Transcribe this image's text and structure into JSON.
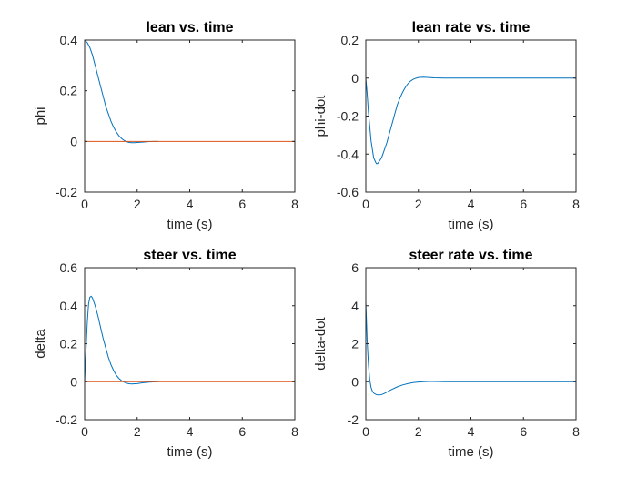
{
  "chart_data": [
    {
      "type": "line",
      "title": "lean vs. time",
      "xlabel": "time (s)",
      "ylabel": "phi",
      "xlim": [
        0,
        8
      ],
      "ylim": [
        -0.2,
        0.4
      ],
      "xticks": [
        "0",
        "2",
        "4",
        "6",
        "8"
      ],
      "yticks": [
        "-0.2",
        "0",
        "0.2",
        "0.4"
      ],
      "grid": false,
      "series": [
        {
          "color": "#0072BD",
          "x": [
            0,
            0.1,
            0.2,
            0.3,
            0.4,
            0.5,
            0.6,
            0.7,
            0.8,
            0.9,
            1.0,
            1.1,
            1.2,
            1.3,
            1.4,
            1.5,
            1.6,
            1.7,
            1.8,
            1.9,
            2.0,
            2.2,
            2.4,
            2.6,
            2.8
          ],
          "y": [
            0.4,
            0.39,
            0.37,
            0.34,
            0.3,
            0.26,
            0.22,
            0.18,
            0.14,
            0.11,
            0.08,
            0.057,
            0.038,
            0.023,
            0.012,
            0.004,
            -0.001,
            -0.004,
            -0.005,
            -0.005,
            -0.004,
            -0.003,
            -0.001,
            0.0,
            0.0
          ]
        },
        {
          "color": "#D95319",
          "x": [
            0,
            8
          ],
          "y": [
            0,
            0
          ]
        }
      ]
    },
    {
      "type": "line",
      "title": "lean rate vs. time",
      "xlabel": "time (s)",
      "ylabel": "phi-dot",
      "xlim": [
        0,
        8
      ],
      "ylim": [
        -0.6,
        0.2
      ],
      "xticks": [
        "0",
        "2",
        "4",
        "6",
        "8"
      ],
      "yticks": [
        "-0.6",
        "-0.4",
        "-0.2",
        "0",
        "0.2"
      ],
      "grid": false,
      "series": [
        {
          "color": "#0072BD",
          "x": [
            0,
            0.05,
            0.1,
            0.2,
            0.3,
            0.4,
            0.45,
            0.5,
            0.6,
            0.7,
            0.8,
            0.9,
            1.0,
            1.1,
            1.2,
            1.3,
            1.4,
            1.5,
            1.6,
            1.7,
            1.8,
            1.9,
            2.0,
            2.2,
            2.4,
            2.6,
            3.0,
            8.0
          ],
          "y": [
            0,
            -0.08,
            -0.18,
            -0.33,
            -0.42,
            -0.45,
            -0.45,
            -0.44,
            -0.42,
            -0.38,
            -0.34,
            -0.29,
            -0.24,
            -0.19,
            -0.14,
            -0.105,
            -0.075,
            -0.05,
            -0.03,
            -0.016,
            -0.007,
            -0.001,
            0.003,
            0.005,
            0.003,
            0.001,
            0.0,
            0.0
          ]
        }
      ]
    },
    {
      "type": "line",
      "title": "steer vs. time",
      "xlabel": "time (s)",
      "ylabel": "delta",
      "xlim": [
        0,
        8
      ],
      "ylim": [
        -0.2,
        0.6
      ],
      "xticks": [
        "0",
        "2",
        "4",
        "6",
        "8"
      ],
      "yticks": [
        "-0.2",
        "0",
        "0.2",
        "0.4",
        "0.6"
      ],
      "grid": false,
      "series": [
        {
          "color": "#0072BD",
          "x": [
            0,
            0.05,
            0.1,
            0.15,
            0.2,
            0.25,
            0.3,
            0.35,
            0.4,
            0.5,
            0.6,
            0.7,
            0.8,
            0.9,
            1.0,
            1.1,
            1.2,
            1.3,
            1.4,
            1.5,
            1.6,
            1.7,
            1.8,
            1.9,
            2.0,
            2.2,
            2.4,
            2.6,
            2.8
          ],
          "y": [
            0,
            0.16,
            0.31,
            0.41,
            0.445,
            0.45,
            0.44,
            0.42,
            0.4,
            0.35,
            0.29,
            0.23,
            0.18,
            0.13,
            0.09,
            0.06,
            0.035,
            0.018,
            0.006,
            -0.002,
            -0.008,
            -0.011,
            -0.012,
            -0.011,
            -0.01,
            -0.006,
            -0.003,
            -0.001,
            0.0
          ]
        },
        {
          "color": "#D95319",
          "x": [
            0,
            8
          ],
          "y": [
            0,
            0
          ]
        }
      ]
    },
    {
      "type": "line",
      "title": "steer rate vs. time",
      "xlabel": "time (s)",
      "ylabel": "delta-dot",
      "xlim": [
        0,
        8
      ],
      "ylim": [
        -2,
        6
      ],
      "xticks": [
        "0",
        "2",
        "4",
        "6",
        "8"
      ],
      "yticks": [
        "-2",
        "0",
        "2",
        "4",
        "6"
      ],
      "grid": false,
      "series": [
        {
          "color": "#0072BD",
          "x": [
            0,
            0.02,
            0.05,
            0.1,
            0.15,
            0.2,
            0.25,
            0.3,
            0.4,
            0.5,
            0.6,
            0.7,
            0.8,
            0.9,
            1.0,
            1.2,
            1.4,
            1.6,
            1.8,
            2.0,
            2.2,
            2.4,
            2.6,
            3.0,
            8.0
          ],
          "y": [
            4.2,
            3.4,
            2.2,
            0.9,
            0.1,
            -0.3,
            -0.5,
            -0.6,
            -0.68,
            -0.7,
            -0.68,
            -0.62,
            -0.55,
            -0.47,
            -0.4,
            -0.27,
            -0.17,
            -0.1,
            -0.05,
            -0.02,
            0.0,
            0.01,
            0.01,
            0.0,
            0.0
          ]
        }
      ]
    }
  ]
}
